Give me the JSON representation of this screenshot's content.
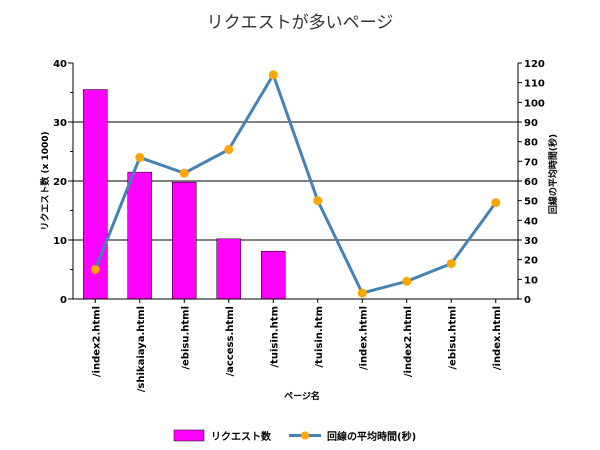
{
  "chart_data": {
    "type": "bar",
    "title": "リクエストが多いページ",
    "xlabel": "ページ名",
    "categories": [
      "/index2.html",
      "/shikaiaya.html",
      "/ebisu.html",
      "/access.html",
      "/tuisin.htm",
      "/tuisin.htm",
      "/index.html",
      "/index2.html",
      "/ebisu.html",
      "/index.html"
    ],
    "series": [
      {
        "name": "リクエスト数",
        "type": "bar",
        "axis": "left",
        "color": "#ff00ff",
        "values": [
          35.5,
          21.5,
          19.8,
          10.2,
          8.1,
          null,
          null,
          null,
          null,
          null
        ]
      },
      {
        "name": "回線の平均時間(秒)",
        "type": "line",
        "axis": "right",
        "line_color": "#4682b4",
        "marker_color": "#ffa500",
        "values": [
          15,
          72,
          64,
          76,
          114,
          50,
          3,
          9,
          18,
          49
        ]
      }
    ],
    "left_axis": {
      "label": "リクエスト数 (x 1000)",
      "ylim": [
        0,
        40
      ],
      "ticks": [
        "0",
        "10",
        "20",
        "30",
        "40"
      ]
    },
    "right_axis": {
      "label": "回線の平均時間(秒)",
      "ylim": [
        0,
        120
      ],
      "ticks": [
        "0",
        "10",
        "20",
        "30",
        "40",
        "50",
        "60",
        "70",
        "80",
        "90",
        "100",
        "110",
        "120"
      ]
    },
    "grid": "horizontal",
    "legend_position": "bottom"
  }
}
